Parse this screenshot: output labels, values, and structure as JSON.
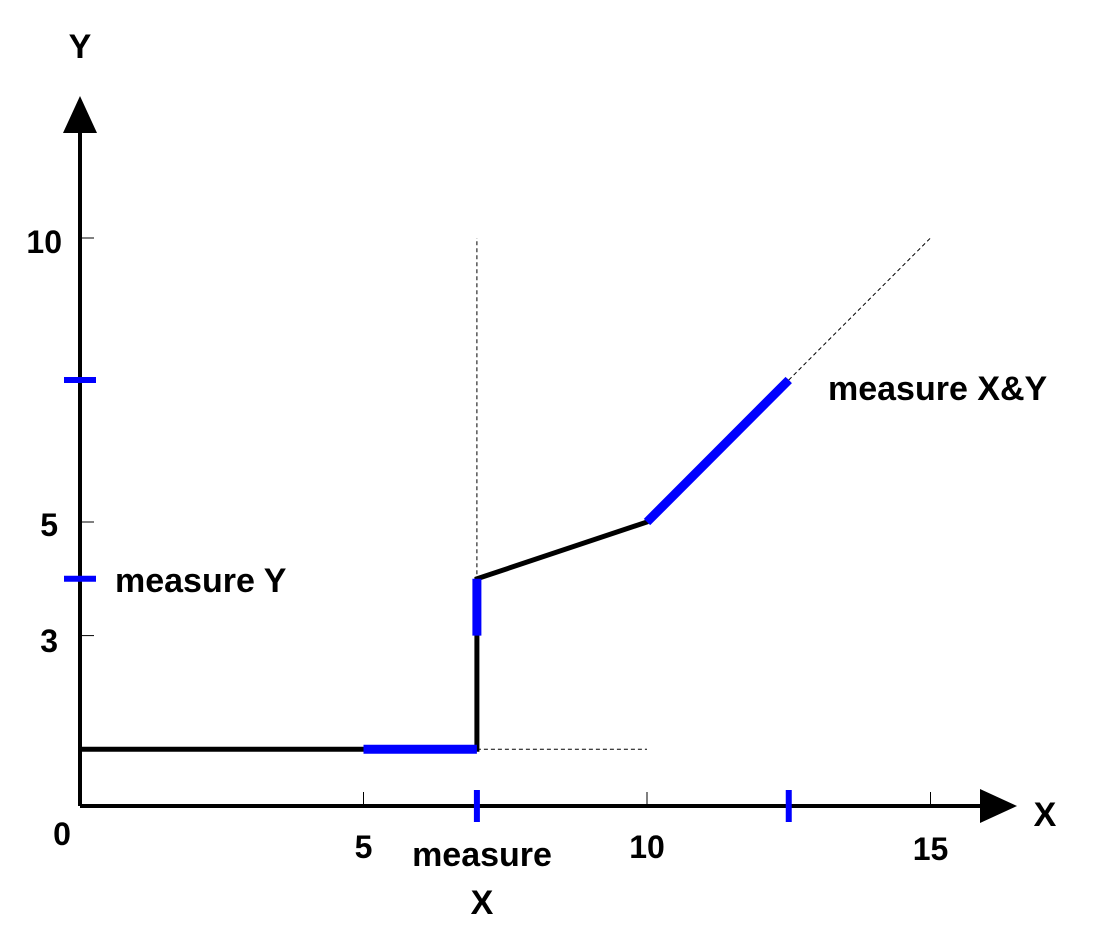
{
  "axes": {
    "x_name": "X",
    "y_name": "Y",
    "origin_label": "0",
    "x_ticks": [
      "5",
      "10",
      "15"
    ],
    "y_ticks": [
      "3",
      "5",
      "10"
    ]
  },
  "chart_data": {
    "type": "line",
    "xlim": [
      0,
      15
    ],
    "ylim": [
      0,
      10
    ],
    "curve": [
      [
        0,
        1
      ],
      [
        7,
        1
      ],
      [
        7,
        4
      ],
      [
        10,
        5
      ],
      [
        12.5,
        7.5
      ]
    ],
    "extension": [
      12.5,
      7.5,
      15,
      10
    ],
    "guides": {
      "vertical": {
        "x": 7,
        "y_from": 1,
        "y_to": 10
      },
      "horizontal": {
        "y": 1,
        "x_from": 7,
        "x_to": 10
      }
    },
    "highlights": {
      "x_segment": [
        [
          5,
          1
        ],
        [
          7,
          1
        ]
      ],
      "y_segment": [
        [
          7,
          3
        ],
        [
          7,
          4
        ]
      ],
      "xy_segment": [
        [
          10,
          5
        ],
        [
          12.5,
          7.5
        ]
      ]
    },
    "axis_marks": {
      "x": [
        7,
        12.5
      ],
      "y": [
        4,
        7.5
      ]
    }
  },
  "colors": {
    "highlight": "#0000ff",
    "curve": "#000000",
    "axis": "#000000"
  },
  "annotations": {
    "measure_y": "measure Y",
    "measure_x_line1": "measure",
    "measure_x_line2": "X",
    "measure_xy": "measure X&Y"
  }
}
